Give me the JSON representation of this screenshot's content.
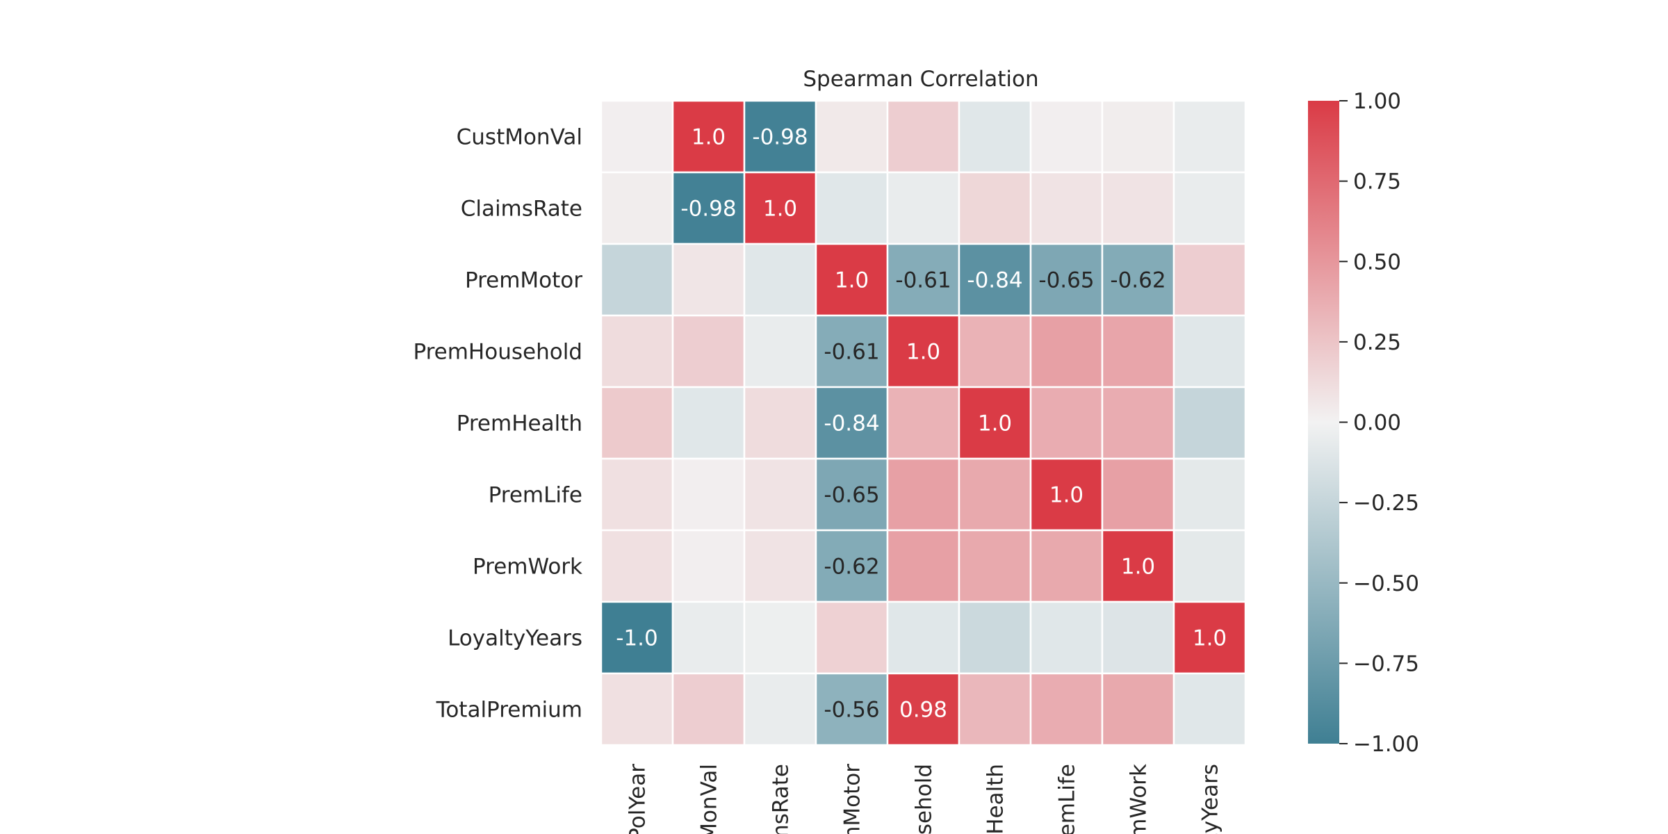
{
  "chart_data": {
    "type": "heatmap",
    "title": "Spearman Correlation",
    "x_labels": [
      "PolYear",
      "MonVal",
      "imsRate",
      "mMotor",
      "usehold",
      "mHealth",
      "remLife",
      "emWork",
      "tyYears"
    ],
    "y_labels": [
      "CustMonVal",
      "ClaimsRate",
      "PremMotor",
      "PremHousehold",
      "PremHealth",
      "PremLife",
      "PremWork",
      "LoyaltyYears",
      "TotalPremium"
    ],
    "values": [
      [
        0.02,
        1.0,
        -0.98,
        0.05,
        0.2,
        -0.1,
        0.02,
        0.03,
        -0.05
      ],
      [
        0.03,
        -0.98,
        1.0,
        -0.1,
        -0.05,
        0.15,
        0.08,
        0.08,
        -0.05
      ],
      [
        -0.25,
        0.07,
        -0.1,
        1.0,
        -0.61,
        -0.84,
        -0.65,
        -0.62,
        0.2
      ],
      [
        0.12,
        0.2,
        -0.05,
        -0.61,
        1.0,
        0.35,
        0.45,
        0.42,
        -0.1
      ],
      [
        0.22,
        -0.1,
        0.12,
        -0.84,
        0.35,
        1.0,
        0.38,
        0.38,
        -0.25
      ],
      [
        0.1,
        0.02,
        0.08,
        -0.65,
        0.45,
        0.4,
        1.0,
        0.45,
        -0.08
      ],
      [
        0.1,
        0.02,
        0.08,
        -0.62,
        0.45,
        0.4,
        0.4,
        1.0,
        -0.08
      ],
      [
        -1.0,
        -0.05,
        -0.03,
        0.18,
        -0.1,
        -0.22,
        -0.1,
        -0.12,
        1.0
      ],
      [
        0.1,
        0.2,
        -0.05,
        -0.56,
        0.98,
        0.32,
        0.38,
        0.4,
        -0.1
      ]
    ],
    "annotations": [
      [
        null,
        "1.0",
        "-0.98",
        null,
        null,
        null,
        null,
        null,
        null
      ],
      [
        null,
        "-0.98",
        "1.0",
        null,
        null,
        null,
        null,
        null,
        null
      ],
      [
        null,
        null,
        null,
        "1.0",
        "-0.61",
        "-0.84",
        "-0.65",
        "-0.62",
        null
      ],
      [
        null,
        null,
        null,
        "-0.61",
        "1.0",
        null,
        null,
        null,
        null
      ],
      [
        null,
        null,
        null,
        "-0.84",
        null,
        "1.0",
        null,
        null,
        null
      ],
      [
        null,
        null,
        null,
        "-0.65",
        null,
        null,
        "1.0",
        null,
        null
      ],
      [
        null,
        null,
        null,
        "-0.62",
        null,
        null,
        null,
        "1.0",
        null
      ],
      [
        "-1.0",
        null,
        null,
        null,
        null,
        null,
        null,
        null,
        "1.0"
      ],
      [
        null,
        null,
        null,
        "-0.56",
        "0.98",
        null,
        null,
        null,
        null
      ]
    ],
    "vmin": -1.0,
    "vmax": 1.0,
    "colorbar_ticks": [
      "1.00",
      "0.75",
      "0.50",
      "0.25",
      "0.00",
      "−0.25",
      "−0.50",
      "−0.75",
      "−1.00"
    ],
    "colormap": {
      "low": "#3f7f93",
      "mid": "#f2f2f2",
      "high": "#da3b46"
    },
    "grid": false
  }
}
